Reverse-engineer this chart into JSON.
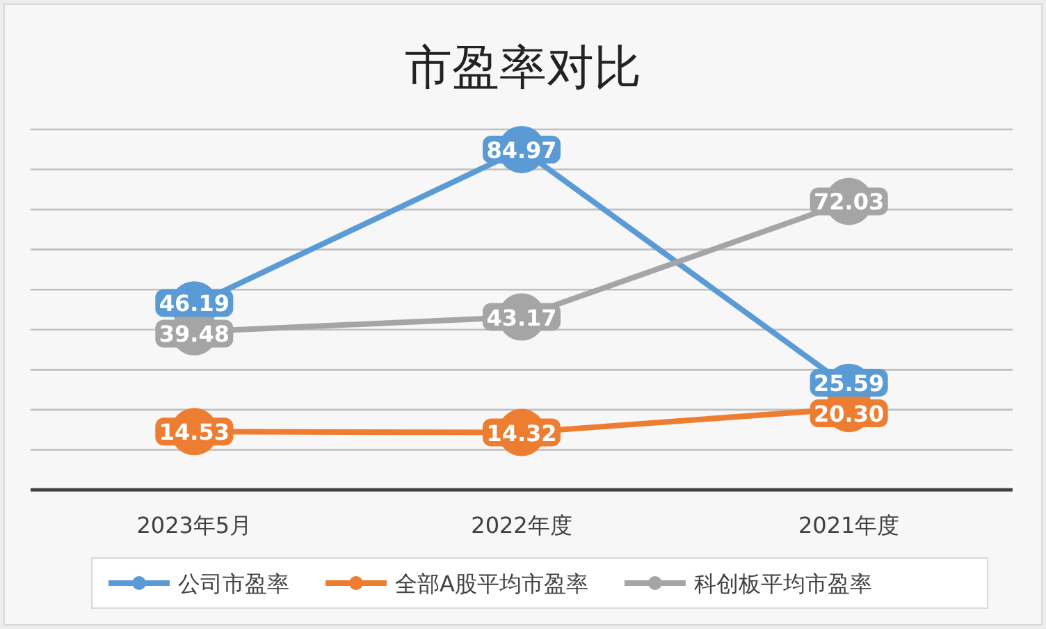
{
  "chart_data": {
    "type": "line",
    "title": "市盈率对比",
    "categories": [
      "2023年5月",
      "2022年度",
      "2021年度"
    ],
    "series": [
      {
        "name": "公司市盈率",
        "color": "#5b9bd5",
        "values": [
          46.19,
          84.97,
          25.59
        ],
        "value_labels": [
          "46.19",
          "84.97",
          "25.59"
        ]
      },
      {
        "name": "全部A股平均市盈率",
        "color": "#ed7d31",
        "values": [
          14.53,
          14.32,
          20.3
        ],
        "value_labels": [
          "14.53",
          "14.32",
          "20.30"
        ]
      },
      {
        "name": "科创板平均市盈率",
        "color": "#a5a5a5",
        "values": [
          39.48,
          43.17,
          72.03
        ],
        "value_labels": [
          "39.48",
          "43.17",
          "72.03"
        ]
      }
    ],
    "ylim": [
      0,
      90
    ],
    "yticks": [
      {
        "value": 0,
        "label": null
      },
      {
        "value": 10,
        "label": null
      },
      {
        "value": 20,
        "label": null
      },
      {
        "value": 30,
        "label": null
      },
      {
        "value": 40,
        "label": null
      },
      {
        "value": 50,
        "label": null
      },
      {
        "value": 60,
        "label": null
      },
      {
        "value": 70,
        "label": null
      },
      {
        "value": 80,
        "label": null
      },
      {
        "value": 90,
        "label": null
      }
    ],
    "grid": "y",
    "marker": "circle",
    "line_style": "solid",
    "legend": "bottom"
  }
}
